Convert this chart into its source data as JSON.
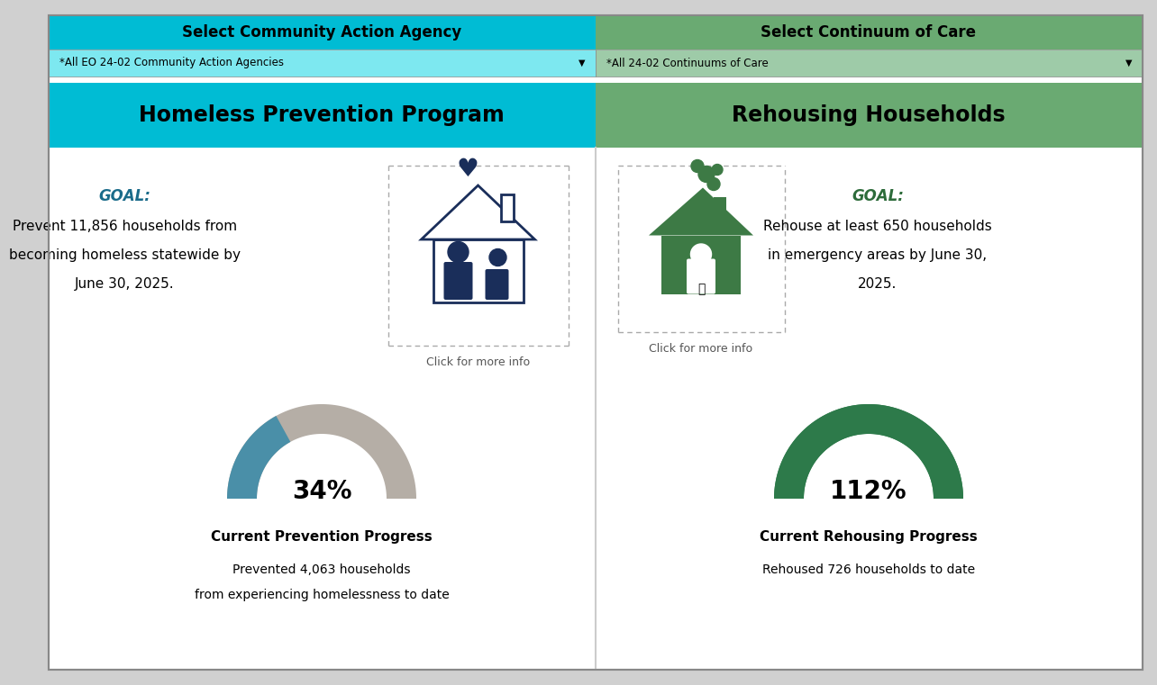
{
  "header_bg_left": "#00BCD4",
  "header_bg_right": "#6aaa72",
  "header_text_left": "Select Community Action Agency",
  "header_text_right": "Select Continuum of Care",
  "dropdown_bg_left": "#7de8f0",
  "dropdown_bg_right": "#9ecba8",
  "dropdown_text_left": "*All EO 24-02 Community Action Agencies",
  "dropdown_text_right": "*All 24-02 Continuums of Care",
  "section_bg_left": "#00BCD4",
  "section_bg_right": "#6aaa72",
  "section_title_left": "Homeless Prevention Program",
  "section_title_right": "Rehousing Households",
  "panel_bg": "#ffffff",
  "goal_label_color_left": "#1a6b8a",
  "goal_label_color_right": "#2d6b3a",
  "goal_text_left_1": "Prevent 11,856 households from",
  "goal_text_left_2": "becoming homeless statewide by",
  "goal_text_left_3": "June 30, 2025.",
  "goal_text_right_1": "Rehouse at least ",
  "goal_text_right_bold": "650",
  "goal_text_right_2": " households",
  "goal_text_right_3": "in emergency areas by June 30,",
  "goal_text_right_4": "2025.",
  "click_text": "Click for more info",
  "house_color_left": "#1a2e5a",
  "house_color_right": "#3d7a45",
  "gauge_color_left_fg": "#4a8fa8",
  "gauge_color_left_bg": "#b5aea6",
  "gauge_color_right_fg": "#2d7a4a",
  "gauge_color_right_bg": "#2d7a4a",
  "pct_left": "34%",
  "pct_right": "112%",
  "progress_title_left": "Current Prevention Progress",
  "progress_title_right": "Current Rehousing Progress",
  "progress_sub_left_1": "Prevented 4,063 households",
  "progress_sub_left_2": "from experiencing homelessness to date",
  "progress_sub_right": "Rehoused 726 households to date",
  "outer_bg": "#d0d0d0",
  "border_color": "#888888"
}
